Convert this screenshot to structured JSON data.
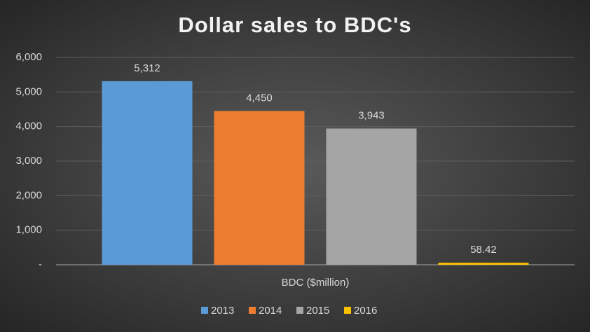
{
  "chart_data": {
    "type": "bar",
    "title": "Dollar sales to BDC's",
    "categories": [
      "BDC ($million)"
    ],
    "series": [
      {
        "name": "2013",
        "color": "#5b9bd5",
        "values": [
          5312
        ],
        "value_labels": [
          "5,312"
        ]
      },
      {
        "name": "2014",
        "color": "#ed7d31",
        "values": [
          4450
        ],
        "value_labels": [
          "4,450"
        ]
      },
      {
        "name": "2015",
        "color": "#a5a5a5",
        "values": [
          3943
        ],
        "value_labels": [
          "3,943"
        ]
      },
      {
        "name": "2016",
        "color": "#ffc000",
        "values": [
          58.42
        ]
      }
    ],
    "ylim": [
      0,
      6000
    ],
    "yticks": [
      {
        "value": 0,
        "label": "-"
      },
      {
        "value": 1000,
        "label": "1,000"
      },
      {
        "value": 2000,
        "label": "2,000"
      },
      {
        "value": 3000,
        "label": "3,000"
      },
      {
        "value": 4000,
        "label": "4,000"
      },
      {
        "value": 5000,
        "label": "5,000"
      },
      {
        "value": 6000,
        "label": "6,000"
      }
    ],
    "grid": true,
    "legend": "bottom"
  }
}
